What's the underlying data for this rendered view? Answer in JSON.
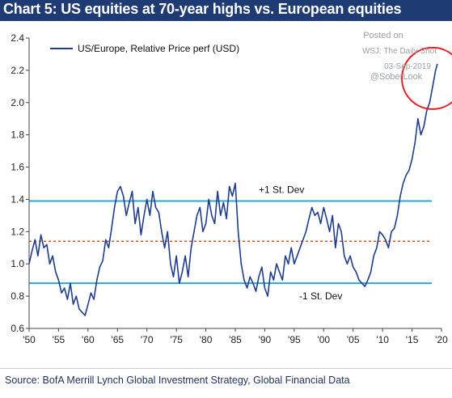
{
  "header": {
    "title": "Chart 5: US equities at 70-year highs vs. European equities",
    "title_bg": "#1f3b73"
  },
  "watermark": {
    "line1": "Posted on",
    "line2": "WSJ: The Daily Shot",
    "line3": "03-Sep-2019",
    "line4": "@SoberLook"
  },
  "footer": {
    "source": "Source:  BofA Merrill Lynch Global Investment Strategy, Global Financial Data"
  },
  "colors": {
    "series": "#1f3d8a",
    "std_lines": "#29a8d6",
    "mean_line": "#d0542a",
    "circle": "#e31e24"
  },
  "chart_data": {
    "type": "line",
    "title": "Chart 5: US equities at 70-year highs vs. European equities",
    "xlabel": "",
    "ylabel": "",
    "xlim": [
      1950,
      2020
    ],
    "ylim": [
      0.6,
      2.4
    ],
    "yticks": [
      "0.6",
      "0.8",
      "1.0",
      "1.2",
      "1.4",
      "1.6",
      "1.8",
      "2.0",
      "2.2",
      "2.4"
    ],
    "xticks": [
      "'50",
      "'55",
      "'60",
      "'65",
      "'70",
      "'75",
      "'80",
      "'85",
      "'90",
      "'95",
      "'00",
      "'05",
      "'10",
      "'15",
      "'20"
    ],
    "legend": {
      "label": "US/Europe, Relative Price perf (USD)",
      "position": "top-left"
    },
    "reference_lines": [
      {
        "label": "+1 St. Dev",
        "y": 1.39
      },
      {
        "label": "-1 St. Dev",
        "y": 0.88
      },
      {
        "label": "",
        "y": 1.14,
        "style": "dashed"
      }
    ],
    "highlight": {
      "shape": "circle",
      "around_x": 2018.5,
      "around_y": 2.15
    },
    "series": [
      {
        "name": "US/Europe, Relative Price perf (USD)",
        "x": [
          1950,
          1950.5,
          1951,
          1951.5,
          1952,
          1952.5,
          1953,
          1953.5,
          1954,
          1954.5,
          1955,
          1955.5,
          1956,
          1956.5,
          1957,
          1957.5,
          1958,
          1958.5,
          1959,
          1959.5,
          1960,
          1960.5,
          1961,
          1961.5,
          1962,
          1962.5,
          1963,
          1963.5,
          1964,
          1964.5,
          1965,
          1965.5,
          1966,
          1966.5,
          1967,
          1967.5,
          1968,
          1968.5,
          1969,
          1969.5,
          1970,
          1970.5,
          1971,
          1971.5,
          1972,
          1972.5,
          1973,
          1973.5,
          1974,
          1974.5,
          1975,
          1975.5,
          1976,
          1976.5,
          1977,
          1977.5,
          1978,
          1978.5,
          1979,
          1979.5,
          1980,
          1980.5,
          1981,
          1981.5,
          1982,
          1982.5,
          1983,
          1983.5,
          1984,
          1984.5,
          1985,
          1985.5,
          1986,
          1986.5,
          1987,
          1987.5,
          1988,
          1988.5,
          1989,
          1989.5,
          1990,
          1990.5,
          1991,
          1991.5,
          1992,
          1992.5,
          1993,
          1993.5,
          1994,
          1994.5,
          1995,
          1995.5,
          1996,
          1996.5,
          1997,
          1997.5,
          1998,
          1998.5,
          1999,
          1999.5,
          2000,
          2000.5,
          2001,
          2001.5,
          2002,
          2002.5,
          2003,
          2003.5,
          2004,
          2004.5,
          2005,
          2005.5,
          2006,
          2006.5,
          2007,
          2007.5,
          2008,
          2008.5,
          2009,
          2009.5,
          2010,
          2010.5,
          2011,
          2011.5,
          2012,
          2012.5,
          2013,
          2013.5,
          2014,
          2014.5,
          2015,
          2015.5,
          2016,
          2016.5,
          2017,
          2017.5,
          2018,
          2018.5,
          2019,
          2019.3
        ],
        "values": [
          1.0,
          1.08,
          1.15,
          1.05,
          1.18,
          1.1,
          1.12,
          1.0,
          1.05,
          0.95,
          0.9,
          0.82,
          0.85,
          0.78,
          0.88,
          0.75,
          0.8,
          0.72,
          0.7,
          0.68,
          0.75,
          0.82,
          0.78,
          0.9,
          0.98,
          1.02,
          1.15,
          1.1,
          1.22,
          1.35,
          1.45,
          1.48,
          1.42,
          1.3,
          1.38,
          1.45,
          1.25,
          1.35,
          1.18,
          1.3,
          1.4,
          1.3,
          1.45,
          1.35,
          1.32,
          1.2,
          1.1,
          1.2,
          1.0,
          0.92,
          1.05,
          0.88,
          0.95,
          1.05,
          0.92,
          1.1,
          1.2,
          1.3,
          1.35,
          1.2,
          1.25,
          1.4,
          1.3,
          1.25,
          1.45,
          1.3,
          1.38,
          1.28,
          1.48,
          1.42,
          1.5,
          1.2,
          1.0,
          0.9,
          0.85,
          0.92,
          0.88,
          0.83,
          0.92,
          0.98,
          0.85,
          0.8,
          0.95,
          0.9,
          1.0,
          0.95,
          0.9,
          1.05,
          1.0,
          1.1,
          1.0,
          1.05,
          1.1,
          1.15,
          1.2,
          1.28,
          1.35,
          1.3,
          1.32,
          1.25,
          1.35,
          1.28,
          1.2,
          1.3,
          1.1,
          1.25,
          1.2,
          1.05,
          1.0,
          1.05,
          0.98,
          0.95,
          0.9,
          0.88,
          0.86,
          0.9,
          0.95,
          1.05,
          1.1,
          1.2,
          1.18,
          1.15,
          1.1,
          1.2,
          1.22,
          1.3,
          1.42,
          1.5,
          1.55,
          1.58,
          1.65,
          1.75,
          1.9,
          1.8,
          1.85,
          1.95,
          2.0,
          2.1,
          2.2,
          2.24
        ]
      }
    ]
  }
}
